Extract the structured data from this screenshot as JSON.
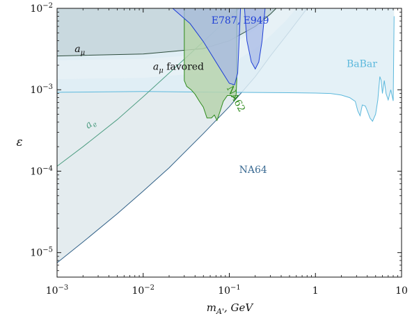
{
  "chart_data": {
    "type": "area",
    "xlabel": "m_{A'}, GeV",
    "ylabel": "ε",
    "x_scale": "log",
    "y_scale": "log",
    "xlim": [
      0.001,
      10
    ],
    "ylim": [
      5e-06,
      0.01
    ],
    "x_ticks": [
      {
        "value": 0.001,
        "base": "10",
        "exp": "−3"
      },
      {
        "value": 0.01,
        "base": "10",
        "exp": "−2"
      },
      {
        "value": 0.1,
        "base": "10",
        "exp": "−1"
      },
      {
        "value": 1,
        "base": "1",
        "exp": ""
      },
      {
        "value": 10,
        "base": "10",
        "exp": ""
      }
    ],
    "y_ticks": [
      {
        "value": 1e-05,
        "base": "10",
        "exp": "−5"
      },
      {
        "value": 0.0001,
        "base": "10",
        "exp": "−4"
      },
      {
        "value": 0.001,
        "base": "10",
        "exp": "−3"
      },
      {
        "value": 0.01,
        "base": "10",
        "exp": "−2"
      }
    ],
    "grid": false,
    "regions": [
      {
        "name": "NA64",
        "kind": "filled-region",
        "fill": "#dfe9ec",
        "stroke": "#2f5f86",
        "boundary": [
          [
            0.001,
            7.5e-06
          ],
          [
            0.002,
            1.35e-05
          ],
          [
            0.005,
            3e-05
          ],
          [
            0.01,
            5.7e-05
          ],
          [
            0.02,
            0.00011
          ],
          [
            0.05,
            0.00029
          ],
          [
            0.1,
            0.00062
          ],
          [
            0.2,
            0.00145
          ],
          [
            0.3,
            0.0026
          ],
          [
            0.5,
            0.0052
          ],
          [
            0.8,
            0.01
          ]
        ]
      },
      {
        "name": "BaBar",
        "kind": "filled-region",
        "fill": "#dfeff6",
        "stroke": "#5bb8dc",
        "boundary": [
          [
            0.001,
            0.00093
          ],
          [
            0.01,
            0.00095
          ],
          [
            0.1,
            0.00093
          ],
          [
            0.5,
            0.00092
          ],
          [
            1.0,
            0.00091
          ],
          [
            1.5,
            0.0009
          ],
          [
            2.0,
            0.00086
          ],
          [
            2.5,
            0.0008
          ],
          [
            2.9,
            0.00072
          ],
          [
            3.1,
            0.00055
          ],
          [
            3.3,
            0.00048
          ],
          [
            3.5,
            0.00065
          ],
          [
            3.8,
            0.00063
          ],
          [
            4.0,
            0.00055
          ],
          [
            4.3,
            0.00045
          ],
          [
            4.6,
            0.00041
          ],
          [
            5.0,
            0.0005
          ],
          [
            5.3,
            0.00075
          ],
          [
            5.6,
            0.00145
          ],
          [
            5.8,
            0.0013
          ],
          [
            6.0,
            0.0009
          ],
          [
            6.3,
            0.0013
          ],
          [
            6.6,
            0.0009
          ],
          [
            7.0,
            0.00075
          ],
          [
            7.5,
            0.001
          ],
          [
            8.0,
            0.00073
          ],
          [
            8.2,
            0.008
          ]
        ]
      },
      {
        "name": "E787, E949",
        "kind": "filled-region",
        "fill": "#a8b9e6",
        "stroke": "#1f3fd6",
        "boundary": [
          [
            0.022,
            0.01
          ],
          [
            0.035,
            0.0065
          ],
          [
            0.05,
            0.0039
          ],
          [
            0.075,
            0.00195
          ],
          [
            0.1,
            0.0012
          ],
          [
            0.115,
            0.00115
          ],
          [
            0.125,
            0.0016
          ],
          [
            0.13,
            0.004
          ],
          [
            0.135,
            0.01
          ]
        ]
      },
      {
        "name": "E787, E949 (second region)",
        "kind": "filled-region",
        "fill": "#a8b9e6",
        "stroke": "#1f3fd6",
        "boundary": [
          [
            0.15,
            0.01
          ],
          [
            0.16,
            0.004
          ],
          [
            0.18,
            0.0022
          ],
          [
            0.2,
            0.0018
          ],
          [
            0.22,
            0.0022
          ],
          [
            0.24,
            0.004
          ],
          [
            0.26,
            0.01
          ]
        ]
      },
      {
        "name": "NA62",
        "kind": "filled-region",
        "fill": "#b7d3ae",
        "stroke": "#2e8b1c",
        "boundary": [
          [
            0.03,
            0.01
          ],
          [
            0.03,
            0.0013
          ],
          [
            0.032,
            0.0011
          ],
          [
            0.036,
            0.001
          ],
          [
            0.04,
            0.00088
          ],
          [
            0.045,
            0.00072
          ],
          [
            0.05,
            0.00061
          ],
          [
            0.055,
            0.00045
          ],
          [
            0.062,
            0.00045
          ],
          [
            0.067,
            0.00049
          ],
          [
            0.072,
            0.00042
          ],
          [
            0.078,
            0.00054
          ],
          [
            0.085,
            0.00072
          ],
          [
            0.095,
            0.00085
          ],
          [
            0.105,
            0.00085
          ],
          [
            0.115,
            0.00078
          ],
          [
            0.12,
            0.00087
          ],
          [
            0.122,
            0.0013
          ],
          [
            0.122,
            0.01
          ]
        ]
      },
      {
        "name": "a_μ favored",
        "kind": "band",
        "fill": "#e8f1f6",
        "lower": [
          [
            0.001,
            0.00135
          ],
          [
            0.01,
            0.0014
          ],
          [
            0.05,
            0.0016
          ],
          [
            0.1,
            0.002
          ],
          [
            0.2,
            0.0032
          ],
          [
            0.3,
            0.0046
          ],
          [
            0.45,
            0.007
          ],
          [
            0.6,
            0.01
          ]
        ],
        "upper": [
          [
            0.001,
            0.0023
          ],
          [
            0.01,
            0.0024
          ],
          [
            0.05,
            0.0027
          ],
          [
            0.1,
            0.0034
          ],
          [
            0.2,
            0.0055
          ],
          [
            0.3,
            0.008
          ],
          [
            0.36,
            0.01
          ]
        ]
      },
      {
        "name": "a_μ",
        "kind": "line",
        "stroke": "#2d4d3d",
        "points": [
          [
            0.001,
            0.0026
          ],
          [
            0.01,
            0.00275
          ],
          [
            0.05,
            0.0032
          ],
          [
            0.1,
            0.004
          ],
          [
            0.2,
            0.006
          ],
          [
            0.3,
            0.0085
          ],
          [
            0.35,
            0.01
          ]
        ],
        "shade_above": "#c2d1d7"
      },
      {
        "name": "a_e",
        "kind": "line",
        "stroke": "#4f9e83",
        "points": [
          [
            0.001,
            0.000115
          ],
          [
            0.002,
            0.0002
          ],
          [
            0.005,
            0.00043
          ],
          [
            0.01,
            0.00082
          ],
          [
            0.02,
            0.0016
          ],
          [
            0.05,
            0.0039
          ],
          [
            0.1,
            0.0077
          ],
          [
            0.13,
            0.01
          ]
        ]
      }
    ],
    "annotations": [
      {
        "id": "na64",
        "text": "NA64",
        "x": 0.13,
        "y": 9.5e-05,
        "color": "#3a6a92"
      },
      {
        "id": "babar",
        "text": "BaBar",
        "x": 2.3,
        "y": 0.0019,
        "color": "#5bb8dc"
      },
      {
        "id": "e787",
        "text": "E787, E949",
        "x": 0.062,
        "y": 0.0065,
        "color": "#1f3fd6"
      },
      {
        "id": "na62",
        "text": "NA62",
        "x": 0.093,
        "y": 0.00105,
        "color": "#2e8b1c"
      },
      {
        "id": "amu",
        "text": "a",
        "sub": "μ",
        "x": 0.0016,
        "y": 0.0029,
        "color": "#111111"
      },
      {
        "id": "amu_fav",
        "text": "a",
        "sub": "μ",
        "suffix": " favored",
        "x": 0.013,
        "y": 0.00175,
        "color": "#111111"
      },
      {
        "id": "ae",
        "text": "a",
        "sub": "e",
        "x": 0.0023,
        "y": 0.00033,
        "color": "#4f9e83"
      }
    ]
  }
}
